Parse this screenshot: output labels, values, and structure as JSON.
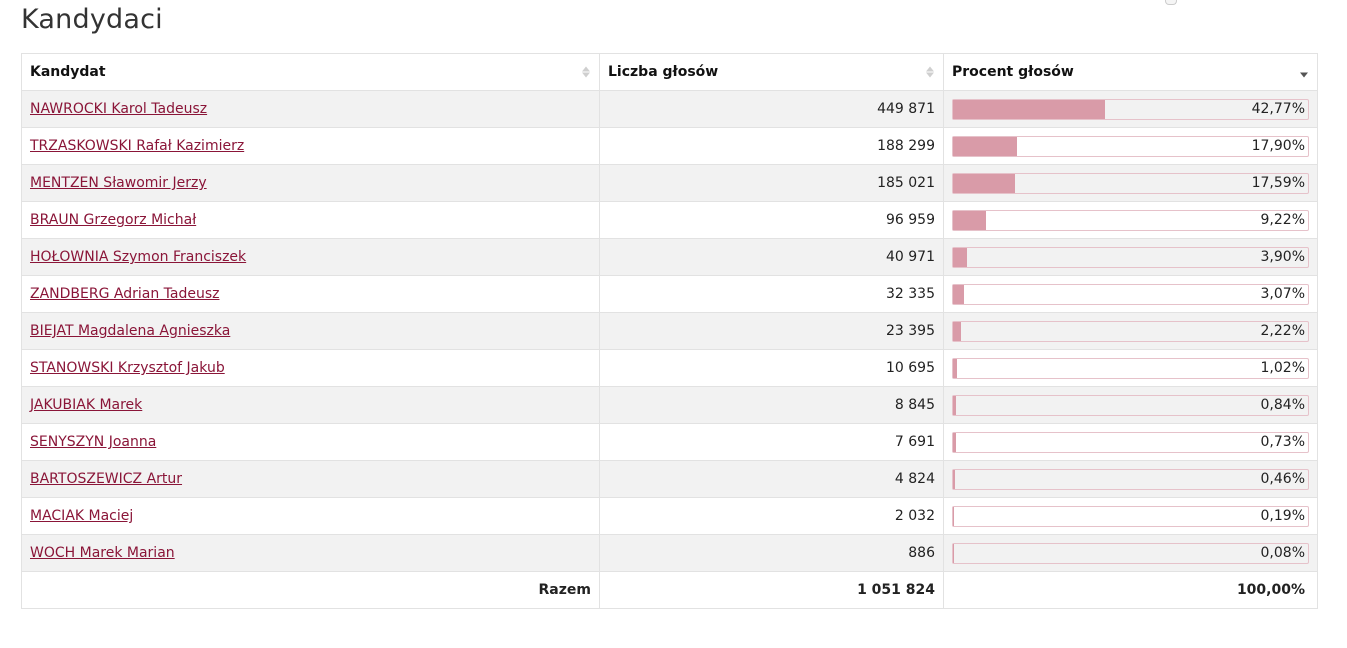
{
  "page": {
    "title": "Kandydaci"
  },
  "table": {
    "headers": {
      "candidate": "Kandydat",
      "votes": "Liczba głosów",
      "percent": "Procent głosów"
    },
    "sort": {
      "column": "percent",
      "direction": "desc"
    },
    "bar_color": "#d99ba8",
    "link_color": "#8a1538",
    "rows": [
      {
        "name": "NAWROCKI Karol Tadeusz",
        "votes": "449 871",
        "percent": "42,77%",
        "share": 42.77
      },
      {
        "name": "TRZASKOWSKI Rafał Kazimierz",
        "votes": "188 299",
        "percent": "17,90%",
        "share": 17.9
      },
      {
        "name": "MENTZEN Sławomir Jerzy",
        "votes": "185 021",
        "percent": "17,59%",
        "share": 17.59
      },
      {
        "name": "BRAUN Grzegorz Michał",
        "votes": "96 959",
        "percent": "9,22%",
        "share": 9.22
      },
      {
        "name": "HOŁOWNIA Szymon Franciszek",
        "votes": "40 971",
        "percent": "3,90%",
        "share": 3.9
      },
      {
        "name": "ZANDBERG Adrian Tadeusz",
        "votes": "32 335",
        "percent": "3,07%",
        "share": 3.07
      },
      {
        "name": "BIEJAT Magdalena Agnieszka",
        "votes": "23 395",
        "percent": "2,22%",
        "share": 2.22
      },
      {
        "name": "STANOWSKI Krzysztof Jakub",
        "votes": "10 695",
        "percent": "1,02%",
        "share": 1.02
      },
      {
        "name": "JAKUBIAK Marek",
        "votes": "8 845",
        "percent": "0,84%",
        "share": 0.84
      },
      {
        "name": "SENYSZYN Joanna",
        "votes": "7 691",
        "percent": "0,73%",
        "share": 0.73
      },
      {
        "name": "BARTOSZEWICZ Artur",
        "votes": "4 824",
        "percent": "0,46%",
        "share": 0.46
      },
      {
        "name": "MACIAK Maciej",
        "votes": "2 032",
        "percent": "0,19%",
        "share": 0.19
      },
      {
        "name": "WOCH Marek Marian",
        "votes": "886",
        "percent": "0,08%",
        "share": 0.08
      }
    ],
    "footer": {
      "label": "Razem",
      "votes": "1 051 824",
      "percent": "100,00%"
    }
  }
}
